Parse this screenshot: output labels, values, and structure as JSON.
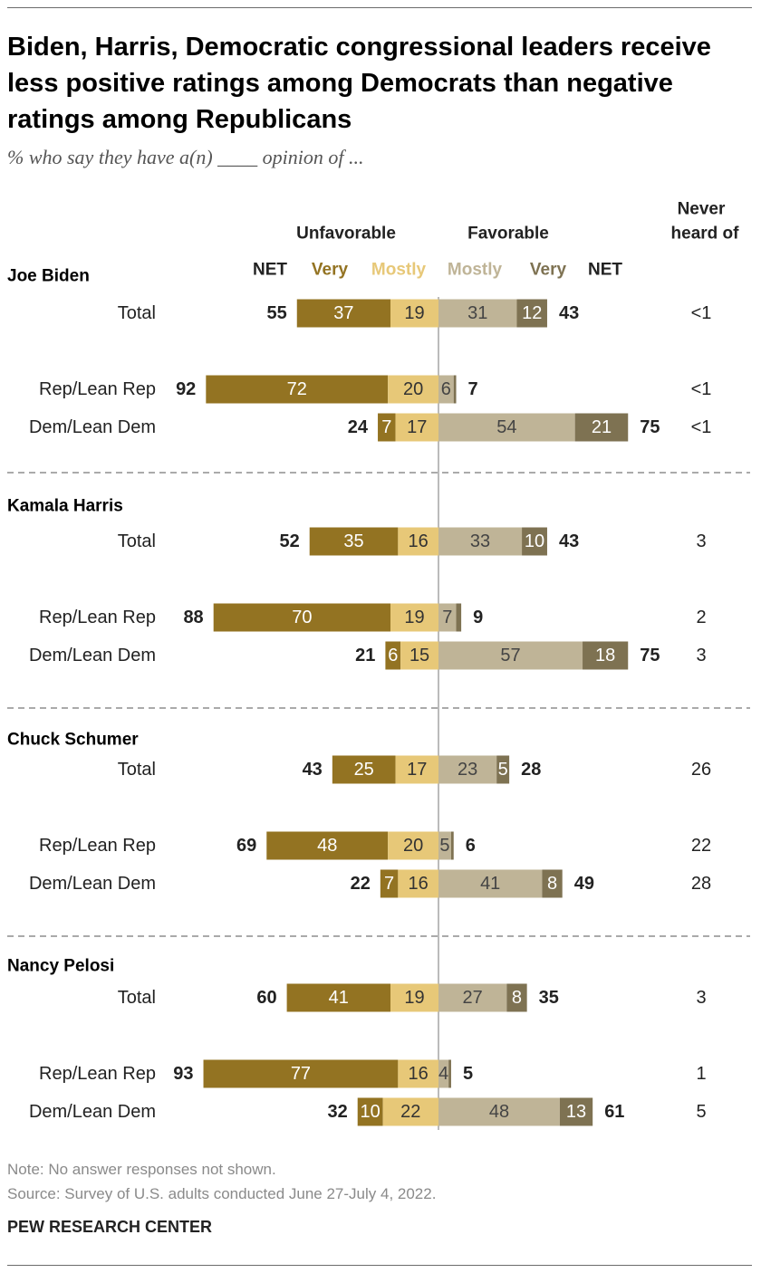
{
  "header": {
    "title": "Biden, Harris, Democratic congressional leaders receive less positive ratings among Democrats than negative ratings among Republicans",
    "subtitle": "% who say they have a(n) ____ opinion of ..."
  },
  "legend": {
    "unfavorable": "Unfavorable",
    "favorable": "Favorable",
    "never_heard_line1": "Never",
    "never_heard_line2": "heard of",
    "net": "NET",
    "very": "Very",
    "mostly": "Mostly"
  },
  "colors": {
    "unfav_very": "#937322",
    "unfav_mostly": "#e7c878",
    "fav_mostly": "#bfb497",
    "fav_very": "#7e7252",
    "divider": "#bbbbbb"
  },
  "chart_data": {
    "type": "bar",
    "stacked": true,
    "diverging": true,
    "series_order": [
      "unfavorable_very",
      "unfavorable_mostly",
      "favorable_mostly",
      "favorable_very"
    ],
    "groups": [
      {
        "name": "Joe Biden",
        "rows": [
          {
            "label": "Total",
            "unfav_very": 37,
            "unfav_mostly": 19,
            "unfav_net": 55,
            "fav_mostly": 31,
            "fav_very": 12,
            "fav_net": 43,
            "never_heard": "<1"
          },
          {
            "label": "Rep/Lean Rep",
            "unfav_very": 72,
            "unfav_mostly": 20,
            "unfav_net": 92,
            "fav_mostly": 6,
            "fav_very": 1,
            "fav_net": 7,
            "never_heard": "<1"
          },
          {
            "label": "Dem/Lean Dem",
            "unfav_very": 7,
            "unfav_mostly": 17,
            "unfav_net": 24,
            "fav_mostly": 54,
            "fav_very": 21,
            "fav_net": 75,
            "never_heard": "<1"
          }
        ]
      },
      {
        "name": "Kamala Harris",
        "rows": [
          {
            "label": "Total",
            "unfav_very": 35,
            "unfav_mostly": 16,
            "unfav_net": 52,
            "fav_mostly": 33,
            "fav_very": 10,
            "fav_net": 43,
            "never_heard": "3"
          },
          {
            "label": "Rep/Lean Rep",
            "unfav_very": 70,
            "unfav_mostly": 19,
            "unfav_net": 88,
            "fav_mostly": 7,
            "fav_very": 2,
            "fav_net": 9,
            "never_heard": "2"
          },
          {
            "label": "Dem/Lean Dem",
            "unfav_very": 6,
            "unfav_mostly": 15,
            "unfav_net": 21,
            "fav_mostly": 57,
            "fav_very": 18,
            "fav_net": 75,
            "never_heard": "3"
          }
        ]
      },
      {
        "name": "Chuck Schumer",
        "rows": [
          {
            "label": "Total",
            "unfav_very": 25,
            "unfav_mostly": 17,
            "unfav_net": 43,
            "fav_mostly": 23,
            "fav_very": 5,
            "fav_net": 28,
            "never_heard": "26"
          },
          {
            "label": "Rep/Lean Rep",
            "unfav_very": 48,
            "unfav_mostly": 20,
            "unfav_net": 69,
            "fav_mostly": 5,
            "fav_very": 1,
            "fav_net": 6,
            "never_heard": "22"
          },
          {
            "label": "Dem/Lean Dem",
            "unfav_very": 7,
            "unfav_mostly": 16,
            "unfav_net": 22,
            "fav_mostly": 41,
            "fav_very": 8,
            "fav_net": 49,
            "never_heard": "28"
          }
        ]
      },
      {
        "name": "Nancy Pelosi",
        "rows": [
          {
            "label": "Total",
            "unfav_very": 41,
            "unfav_mostly": 19,
            "unfav_net": 60,
            "fav_mostly": 27,
            "fav_very": 8,
            "fav_net": 35,
            "never_heard": "3"
          },
          {
            "label": "Rep/Lean Rep",
            "unfav_very": 77,
            "unfav_mostly": 16,
            "unfav_net": 93,
            "fav_mostly": 4,
            "fav_very": 1,
            "fav_net": 5,
            "never_heard": "1"
          },
          {
            "label": "Dem/Lean Dem",
            "unfav_very": 10,
            "unfav_mostly": 22,
            "unfav_net": 32,
            "fav_mostly": 48,
            "fav_very": 13,
            "fav_net": 61,
            "never_heard": "5"
          }
        ]
      }
    ]
  },
  "footer": {
    "note": "Note: No answer responses not shown.",
    "source": "Source: Survey of U.S. adults conducted June 27-July 4, 2022.",
    "brand": "PEW RESEARCH CENTER"
  }
}
